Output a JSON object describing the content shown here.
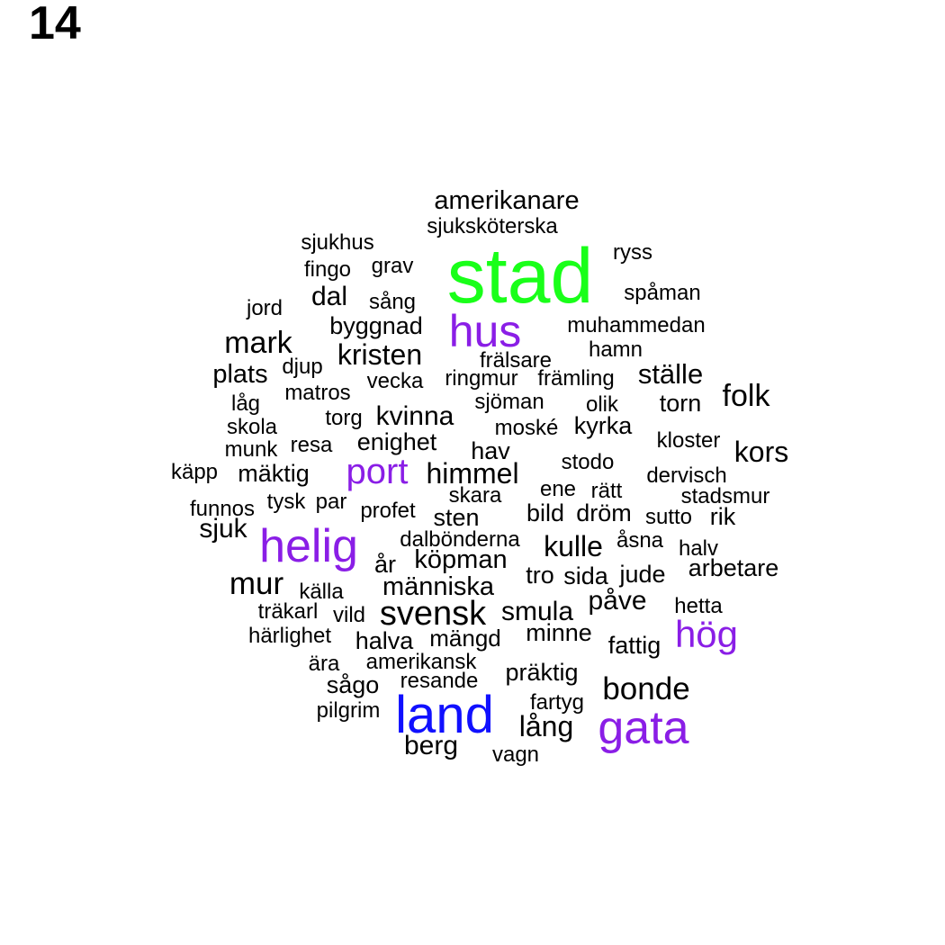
{
  "panel_label": "14",
  "colors": {
    "default": "#000000",
    "green": "#19ff19",
    "purple": "#8a1ee6",
    "blue": "#1010ff"
  },
  "words": [
    {
      "text": "stad",
      "color": "green"
    },
    {
      "text": "land",
      "color": "blue"
    },
    {
      "text": "hus",
      "color": "purple"
    },
    {
      "text": "gata",
      "color": "purple"
    },
    {
      "text": "helig",
      "color": "purple"
    },
    {
      "text": "port",
      "color": "purple"
    },
    {
      "text": "hög",
      "color": "purple"
    },
    {
      "text": "amerikanare",
      "color": "default"
    },
    {
      "text": "sjuksköterska",
      "color": "default"
    },
    {
      "text": "sjukhus",
      "color": "default"
    },
    {
      "text": "ryss",
      "color": "default"
    },
    {
      "text": "fingo",
      "color": "default"
    },
    {
      "text": "grav",
      "color": "default"
    },
    {
      "text": "spåman",
      "color": "default"
    },
    {
      "text": "jord",
      "color": "default"
    },
    {
      "text": "dal",
      "color": "default"
    },
    {
      "text": "sång",
      "color": "default"
    },
    {
      "text": "byggnad",
      "color": "default"
    },
    {
      "text": "muhammedan",
      "color": "default"
    },
    {
      "text": "mark",
      "color": "default"
    },
    {
      "text": "kristen",
      "color": "default"
    },
    {
      "text": "hamn",
      "color": "default"
    },
    {
      "text": "frälsare",
      "color": "default"
    },
    {
      "text": "plats",
      "color": "default"
    },
    {
      "text": "djup",
      "color": "default"
    },
    {
      "text": "vecka",
      "color": "default"
    },
    {
      "text": "ringmur",
      "color": "default"
    },
    {
      "text": "främling",
      "color": "default"
    },
    {
      "text": "ställe",
      "color": "default"
    },
    {
      "text": "matros",
      "color": "default"
    },
    {
      "text": "folk",
      "color": "default"
    },
    {
      "text": "låg",
      "color": "default"
    },
    {
      "text": "sjöman",
      "color": "default"
    },
    {
      "text": "olik",
      "color": "default"
    },
    {
      "text": "torn",
      "color": "default"
    },
    {
      "text": "torg",
      "color": "default"
    },
    {
      "text": "kvinna",
      "color": "default"
    },
    {
      "text": "skola",
      "color": "default"
    },
    {
      "text": "moské",
      "color": "default"
    },
    {
      "text": "kyrka",
      "color": "default"
    },
    {
      "text": "kloster",
      "color": "default"
    },
    {
      "text": "munk",
      "color": "default"
    },
    {
      "text": "resa",
      "color": "default"
    },
    {
      "text": "enighet",
      "color": "default"
    },
    {
      "text": "hav",
      "color": "default"
    },
    {
      "text": "kors",
      "color": "default"
    },
    {
      "text": "stodo",
      "color": "default"
    },
    {
      "text": "käpp",
      "color": "default"
    },
    {
      "text": "mäktig",
      "color": "default"
    },
    {
      "text": "himmel",
      "color": "default"
    },
    {
      "text": "dervisch",
      "color": "default"
    },
    {
      "text": "skara",
      "color": "default"
    },
    {
      "text": "ene",
      "color": "default"
    },
    {
      "text": "rätt",
      "color": "default"
    },
    {
      "text": "stadsmur",
      "color": "default"
    },
    {
      "text": "funnos",
      "color": "default"
    },
    {
      "text": "tysk",
      "color": "default"
    },
    {
      "text": "par",
      "color": "default"
    },
    {
      "text": "profet",
      "color": "default"
    },
    {
      "text": "sten",
      "color": "default"
    },
    {
      "text": "bild",
      "color": "default"
    },
    {
      "text": "dröm",
      "color": "default"
    },
    {
      "text": "sutto",
      "color": "default"
    },
    {
      "text": "rik",
      "color": "default"
    },
    {
      "text": "sjuk",
      "color": "default"
    },
    {
      "text": "dalbönderna",
      "color": "default"
    },
    {
      "text": "kulle",
      "color": "default"
    },
    {
      "text": "åsna",
      "color": "default"
    },
    {
      "text": "halv",
      "color": "default"
    },
    {
      "text": "år",
      "color": "default"
    },
    {
      "text": "köpman",
      "color": "default"
    },
    {
      "text": "tro",
      "color": "default"
    },
    {
      "text": "sida",
      "color": "default"
    },
    {
      "text": "jude",
      "color": "default"
    },
    {
      "text": "arbetare",
      "color": "default"
    },
    {
      "text": "mur",
      "color": "default"
    },
    {
      "text": "källa",
      "color": "default"
    },
    {
      "text": "människa",
      "color": "default"
    },
    {
      "text": "påve",
      "color": "default"
    },
    {
      "text": "träkarl",
      "color": "default"
    },
    {
      "text": "vild",
      "color": "default"
    },
    {
      "text": "svensk",
      "color": "default"
    },
    {
      "text": "smula",
      "color": "default"
    },
    {
      "text": "hetta",
      "color": "default"
    },
    {
      "text": "härlighet",
      "color": "default"
    },
    {
      "text": "halva",
      "color": "default"
    },
    {
      "text": "mängd",
      "color": "default"
    },
    {
      "text": "minne",
      "color": "default"
    },
    {
      "text": "fattig",
      "color": "default"
    },
    {
      "text": "ära",
      "color": "default"
    },
    {
      "text": "amerikansk",
      "color": "default"
    },
    {
      "text": "resande",
      "color": "default"
    },
    {
      "text": "präktig",
      "color": "default"
    },
    {
      "text": "sågo",
      "color": "default"
    },
    {
      "text": "bonde",
      "color": "default"
    },
    {
      "text": "fartyg",
      "color": "default"
    },
    {
      "text": "pilgrim",
      "color": "default"
    },
    {
      "text": "lång",
      "color": "default"
    },
    {
      "text": "berg",
      "color": "default"
    },
    {
      "text": "vagn",
      "color": "default"
    }
  ]
}
